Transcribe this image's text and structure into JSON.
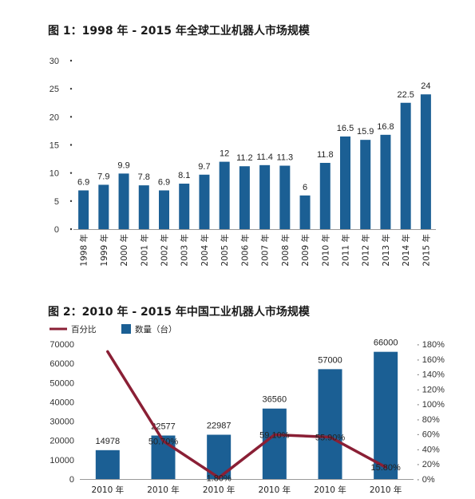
{
  "chart_data": [
    {
      "type": "bar",
      "title": "图 1：1998 年 - 2015 年全球工业机器人市场规模",
      "categories": [
        "1998 年",
        "1999 年",
        "2000 年",
        "2001 年",
        "2002 年",
        "2003 年",
        "2004 年",
        "2005 年",
        "2006 年",
        "2007 年",
        "2008 年",
        "2009 年",
        "2010 年",
        "2011 年",
        "2012 年",
        "2013 年",
        "2014 年",
        "2015 年"
      ],
      "values": [
        6.9,
        7.9,
        9.9,
        7.8,
        6.9,
        8.1,
        9.7,
        12,
        11.2,
        11.4,
        11.3,
        6,
        11.8,
        16.5,
        15.9,
        16.8,
        22.5,
        24
      ],
      "data_labels": [
        "6.9",
        "7.9",
        "9.9",
        "7.8",
        "6.9",
        "8.1",
        "9.7",
        "12",
        "11.2",
        "11.4",
        "11.3",
        "6",
        "11.8",
        "16.5",
        "15.9",
        "16.8",
        "22.5",
        "24"
      ],
      "ylim": [
        0,
        30
      ],
      "yticks": [
        0,
        5,
        10,
        15,
        20,
        25,
        30
      ],
      "grid": false,
      "color": "#1b5f94"
    },
    {
      "type": "bar+line",
      "title": "图 2：2010 年 - 2015 年中国工业机器人市场规模",
      "categories": [
        "2010 年",
        "2010 年",
        "2010 年",
        "2010 年",
        "2010 年",
        "2010 年"
      ],
      "legend": {
        "line": "百分比",
        "bar": "数量（台）",
        "placement": "top-left"
      },
      "bars": {
        "values": [
          14978,
          22577,
          22987,
          36560,
          57000,
          66000
        ],
        "labels": [
          "14978",
          "22577",
          "22987",
          "36560",
          "57000",
          "66000"
        ],
        "ylim": [
          0,
          70000
        ],
        "yticks": [
          0,
          10000,
          20000,
          30000,
          40000,
          50000,
          60000,
          70000
        ],
        "color": "#1b5f94"
      },
      "line": {
        "values": [
          170,
          50.7,
          1.8,
          59.1,
          55.9,
          15.8
        ],
        "labels": [
          "",
          "50.70%",
          "1.80%",
          "59.10%",
          "55.90%",
          "15.80%"
        ],
        "ylim": [
          0,
          180
        ],
        "yticks": [
          "0%",
          "20%",
          "40%",
          "60%",
          "80%",
          "100%",
          "120%",
          "140%",
          "160%",
          "180%"
        ],
        "color": "#8a1f35"
      }
    }
  ]
}
